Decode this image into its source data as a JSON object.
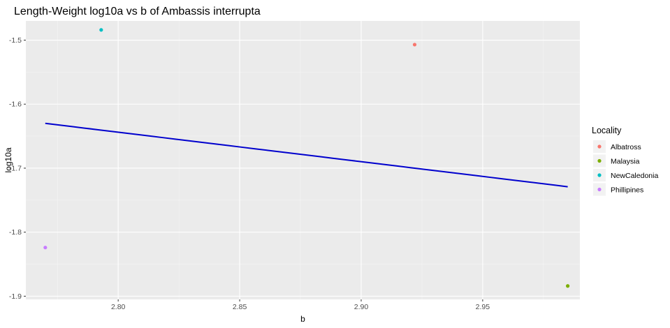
{
  "chart_data": {
    "type": "scatter",
    "title": "Length-Weight log10a vs b of Ambassis interrupta",
    "xlabel": "b",
    "ylabel": "log10a",
    "xlim": [
      2.762,
      2.99
    ],
    "ylim": [
      -1.905,
      -1.47
    ],
    "xticks": [
      2.8,
      2.85,
      2.9,
      2.95
    ],
    "xtick_labels": [
      "2.80",
      "2.85",
      "2.90",
      "2.95"
    ],
    "yticks": [
      -1.5,
      -1.6,
      -1.7,
      -1.8,
      -1.9
    ],
    "ytick_labels": [
      "-1.5",
      "-1.6",
      "-1.7",
      "-1.8",
      "-1.9"
    ],
    "grid": true,
    "legend": {
      "title": "Locality",
      "position": "right",
      "entries": [
        {
          "label": "Albatross",
          "color": "#F8766D"
        },
        {
          "label": "Malaysia",
          "color": "#7CAE00"
        },
        {
          "label": "NewCaledonia",
          "color": "#00BFC4"
        },
        {
          "label": "Phillipines",
          "color": "#C77CFF"
        }
      ]
    },
    "points": [
      {
        "locality": "Albatross",
        "x": 2.922,
        "y": -1.507,
        "color": "#F8766D"
      },
      {
        "locality": "Malaysia",
        "x": 2.985,
        "y": -1.884,
        "color": "#7CAE00"
      },
      {
        "locality": "NewCaledonia",
        "x": 2.793,
        "y": -1.484,
        "color": "#00BFC4"
      },
      {
        "locality": "Phillipines",
        "x": 2.77,
        "y": -1.824,
        "color": "#C77CFF"
      }
    ],
    "fit_line": {
      "color": "#0000CD",
      "x": [
        2.77,
        2.985
      ],
      "y": [
        -1.63,
        -1.729
      ]
    }
  }
}
